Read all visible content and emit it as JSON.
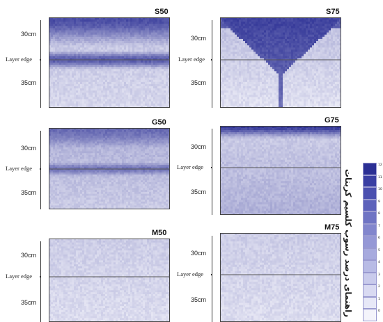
{
  "panels": [
    {
      "id": "s50",
      "title": "S50",
      "depth_top": "30cm",
      "edge": "Layer edge",
      "depth_bottom": "35cm",
      "shape": "band",
      "top_density": 0.85,
      "band_density": 0.78,
      "bottom_density": 0.25
    },
    {
      "id": "s75",
      "title": "S75",
      "depth_top": "30cm",
      "edge": "Layer edge",
      "depth_bottom": "35cm",
      "shape": "cone",
      "top_density": 0.9,
      "band_density": 0.0,
      "bottom_density": 0.1
    },
    {
      "id": "g50",
      "title": "G50",
      "depth_top": "30cm",
      "edge": "Layer edge",
      "depth_bottom": "35cm",
      "shape": "band",
      "top_density": 0.7,
      "band_density": 0.65,
      "bottom_density": 0.35
    },
    {
      "id": "g75",
      "title": "G75",
      "depth_top": "30cm",
      "edge": "Layer edge",
      "depth_bottom": "35cm",
      "shape": "top",
      "top_density": 0.95,
      "band_density": 0.0,
      "bottom_density": 0.35
    },
    {
      "id": "m50",
      "title": "M50",
      "depth_top": "30cm",
      "edge": "Layer edge",
      "depth_bottom": "35cm",
      "shape": "faint",
      "top_density": 0.2,
      "band_density": 0.0,
      "bottom_density": 0.12
    },
    {
      "id": "m75",
      "title": "M75",
      "depth_top": "30cm",
      "edge": "Layer edge",
      "depth_bottom": "35cm",
      "shape": "faint",
      "top_density": 0.2,
      "band_density": 0.0,
      "bottom_density": 0.12
    }
  ],
  "legend": {
    "title": "راهنمای درصد رسوب کلسیم کربنات",
    "levels": [
      "12",
      "11",
      "10",
      "9",
      "8",
      "7",
      "6",
      "5",
      "4",
      "3",
      "2",
      "1",
      "0"
    ],
    "colors": [
      "#2b2f94",
      "#3a3fa3",
      "#4b50b0",
      "#5d62bb",
      "#6f74c4",
      "#8286cd",
      "#9598d6",
      "#a7aade",
      "#b8bbe5",
      "#c9cbec",
      "#d9daf2",
      "#e7e8f7",
      "#f4f4fb"
    ]
  },
  "colors": {
    "deep": "#2b2f94",
    "light": "#f4f4fb"
  }
}
